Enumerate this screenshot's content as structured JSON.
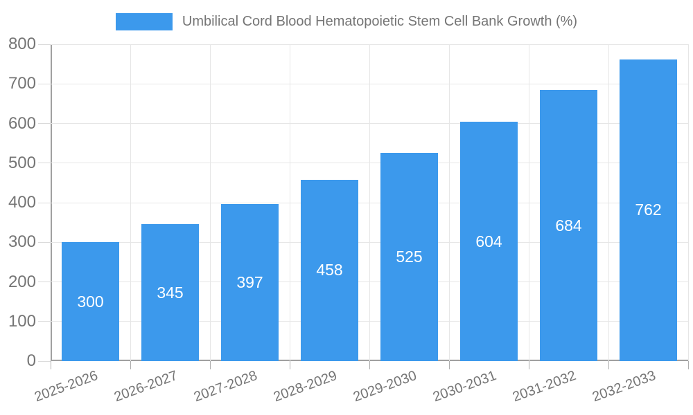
{
  "chart_data": {
    "type": "bar",
    "title": "Umbilical Cord Blood Hematopoietic Stem Cell Bank Growth (%)",
    "categories": [
      "2025-2026",
      "2026-2027",
      "2027-2028",
      "2028-2029",
      "2029-2030",
      "2030-2031",
      "2031-2032",
      "2032-2033"
    ],
    "values": [
      300,
      345,
      397,
      458,
      525,
      604,
      684,
      762
    ],
    "xlabel": "",
    "ylabel": "",
    "ylim": [
      0,
      800
    ],
    "ytick_step": 100,
    "grid": true,
    "legend_position": "top"
  },
  "colors": {
    "bar": "#3C99EC",
    "bar_label": "#FFFFFF",
    "axis_text": "#757575",
    "grid_line": "#E6E6E6",
    "axis_line": "#A0A0A0",
    "y_tick": "#DADADA",
    "x_tick": "#ADADAD",
    "background": "#FFFFFF"
  }
}
